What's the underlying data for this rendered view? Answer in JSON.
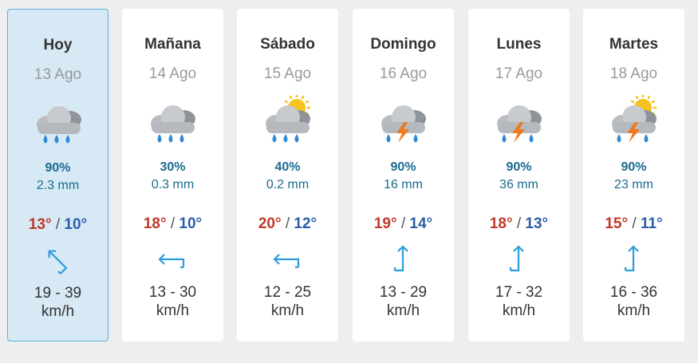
{
  "days": [
    {
      "name": "Hoy",
      "date": "13 Ago",
      "rain_probability": "90%",
      "rain_amount": "2.3 mm",
      "max": "13°",
      "separator": "/",
      "min": "10°",
      "wind": "19 - 39",
      "wind_unit": "km/h"
    },
    {
      "name": "Mañana",
      "date": "14 Ago",
      "rain_probability": "30%",
      "rain_amount": "0.3 mm",
      "max": "18°",
      "separator": "/",
      "min": "10°",
      "wind": "13 - 30",
      "wind_unit": "km/h"
    },
    {
      "name": "Sábado",
      "date": "15 Ago",
      "rain_probability": "40%",
      "rain_amount": "0.2 mm",
      "max": "20°",
      "separator": "/",
      "min": "12°",
      "wind": "12 - 25",
      "wind_unit": "km/h"
    },
    {
      "name": "Domingo",
      "date": "16 Ago",
      "rain_probability": "90%",
      "rain_amount": "16 mm",
      "max": "19°",
      "separator": "/",
      "min": "14°",
      "wind": "13 - 29",
      "wind_unit": "km/h"
    },
    {
      "name": "Lunes",
      "date": "17 Ago",
      "rain_probability": "90%",
      "rain_amount": "36 mm",
      "max": "18°",
      "separator": "/",
      "min": "13°",
      "wind": "17 - 32",
      "wind_unit": "km/h"
    },
    {
      "name": "Martes",
      "date": "18 Ago",
      "rain_probability": "90%",
      "rain_amount": "23 mm",
      "max": "15°",
      "separator": "/",
      "min": "11°",
      "wind": "16 - 36",
      "wind_unit": "km/h"
    }
  ]
}
